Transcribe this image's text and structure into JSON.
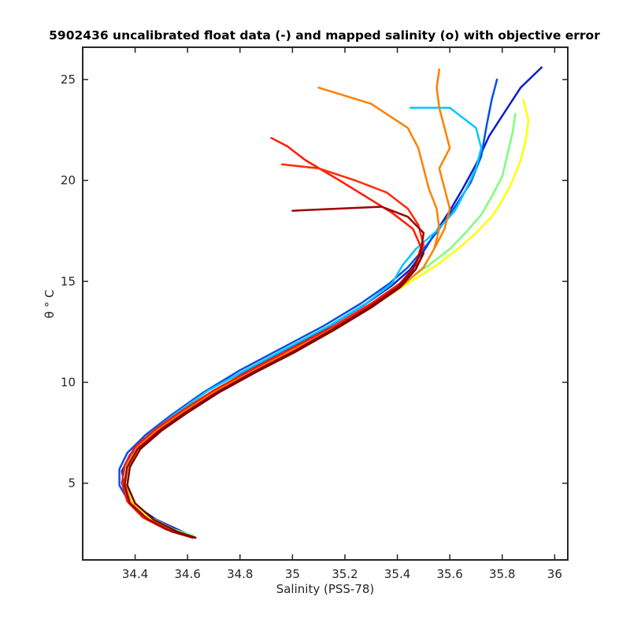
{
  "chart_data": {
    "type": "line",
    "title": "5902436 uncalibrated float data (-) and mapped salinity (o) with objective error",
    "xlabel": "Salinity (PSS-78)",
    "ylabel": "θ ° C",
    "xlim": [
      34.2,
      36.05
    ],
    "ylim": [
      1.2,
      26.6
    ],
    "x_ticks": [
      34.4,
      34.6,
      34.8,
      35,
      35.2,
      35.4,
      35.6,
      35.8,
      36
    ],
    "x_tick_labels": [
      "34.4",
      "34.6",
      "34.8",
      "35",
      "35.2",
      "35.4",
      "35.6",
      "35.8",
      "36"
    ],
    "y_ticks": [
      5,
      10,
      15,
      20,
      25
    ],
    "y_tick_labels": [
      "5",
      "10",
      "15",
      "20",
      "25"
    ],
    "grid": false,
    "colormap": [
      "#00008f",
      "#0000ff",
      "#0080ff",
      "#00ffff",
      "#80ff80",
      "#ffff00",
      "#ff8000",
      "#ff0000",
      "#800000"
    ],
    "series": [
      {
        "color": "#0a1fc8",
        "points": [
          [
            34.63,
            2.3
          ],
          [
            34.58,
            2.6
          ],
          [
            34.48,
            3.2
          ],
          [
            34.4,
            3.9
          ],
          [
            34.36,
            4.8
          ],
          [
            34.35,
            5.6
          ],
          [
            34.38,
            6.4
          ],
          [
            34.45,
            7.3
          ],
          [
            34.55,
            8.3
          ],
          [
            34.68,
            9.4
          ],
          [
            34.82,
            10.5
          ],
          [
            34.98,
            11.6
          ],
          [
            35.13,
            12.7
          ],
          [
            35.27,
            13.8
          ],
          [
            35.38,
            14.8
          ],
          [
            35.45,
            15.6
          ],
          [
            35.5,
            16.5
          ],
          [
            35.55,
            17.5
          ],
          [
            35.6,
            18.5
          ],
          [
            35.65,
            19.6
          ],
          [
            35.7,
            20.8
          ],
          [
            35.75,
            22.2
          ],
          [
            35.82,
            23.6
          ],
          [
            35.87,
            24.6
          ],
          [
            35.95,
            25.6
          ]
        ]
      },
      {
        "color": "#0050f0",
        "points": [
          [
            34.62,
            2.3
          ],
          [
            34.56,
            2.6
          ],
          [
            34.46,
            3.2
          ],
          [
            34.38,
            4.0
          ],
          [
            34.34,
            4.9
          ],
          [
            34.34,
            5.7
          ],
          [
            34.37,
            6.5
          ],
          [
            34.44,
            7.4
          ],
          [
            34.54,
            8.4
          ],
          [
            34.66,
            9.5
          ],
          [
            34.8,
            10.6
          ],
          [
            34.96,
            11.7
          ],
          [
            35.12,
            12.8
          ],
          [
            35.26,
            13.9
          ],
          [
            35.37,
            14.9
          ],
          [
            35.44,
            15.7
          ],
          [
            35.5,
            16.6
          ],
          [
            35.56,
            17.6
          ],
          [
            35.62,
            18.7
          ],
          [
            35.68,
            19.9
          ],
          [
            35.72,
            21.2
          ],
          [
            35.74,
            22.7
          ],
          [
            35.76,
            24.0
          ],
          [
            35.78,
            25.0
          ]
        ]
      },
      {
        "color": "#00c8ff",
        "points": [
          [
            34.62,
            2.4
          ],
          [
            34.55,
            2.7
          ],
          [
            34.45,
            3.3
          ],
          [
            34.38,
            4.1
          ],
          [
            34.35,
            5.0
          ],
          [
            34.36,
            5.8
          ],
          [
            34.39,
            6.6
          ],
          [
            34.46,
            7.5
          ],
          [
            34.56,
            8.5
          ],
          [
            34.68,
            9.6
          ],
          [
            34.82,
            10.6
          ],
          [
            34.98,
            11.7
          ],
          [
            35.14,
            12.8
          ],
          [
            35.28,
            13.9
          ],
          [
            35.38,
            14.9
          ],
          [
            35.42,
            15.8
          ],
          [
            35.47,
            16.6
          ],
          [
            35.55,
            17.5
          ],
          [
            35.62,
            18.5
          ],
          [
            35.66,
            19.5
          ],
          [
            35.7,
            20.6
          ],
          [
            35.72,
            21.6
          ],
          [
            35.7,
            22.6
          ],
          [
            35.6,
            23.6
          ],
          [
            35.45,
            23.6
          ]
        ]
      },
      {
        "color": "#7dff7a",
        "points": [
          [
            34.62,
            2.4
          ],
          [
            34.55,
            2.7
          ],
          [
            34.46,
            3.3
          ],
          [
            34.39,
            4.1
          ],
          [
            34.36,
            5.0
          ],
          [
            34.37,
            5.9
          ],
          [
            34.41,
            6.7
          ],
          [
            34.48,
            7.6
          ],
          [
            34.58,
            8.6
          ],
          [
            34.7,
            9.6
          ],
          [
            34.84,
            10.6
          ],
          [
            35.0,
            11.7
          ],
          [
            35.16,
            12.8
          ],
          [
            35.3,
            13.9
          ],
          [
            35.42,
            14.9
          ],
          [
            35.52,
            15.8
          ],
          [
            35.6,
            16.6
          ],
          [
            35.66,
            17.4
          ],
          [
            35.72,
            18.3
          ],
          [
            35.76,
            19.2
          ],
          [
            35.8,
            20.2
          ],
          [
            35.82,
            21.3
          ],
          [
            35.84,
            22.4
          ],
          [
            35.85,
            23.3
          ]
        ]
      },
      {
        "color": "#ffff00",
        "points": [
          [
            34.61,
            2.4
          ],
          [
            34.54,
            2.7
          ],
          [
            34.45,
            3.3
          ],
          [
            34.39,
            4.1
          ],
          [
            34.37,
            5.0
          ],
          [
            34.38,
            5.9
          ],
          [
            34.42,
            6.8
          ],
          [
            34.5,
            7.7
          ],
          [
            34.6,
            8.6
          ],
          [
            34.72,
            9.6
          ],
          [
            34.86,
            10.6
          ],
          [
            35.02,
            11.7
          ],
          [
            35.18,
            12.8
          ],
          [
            35.32,
            13.9
          ],
          [
            35.44,
            14.9
          ],
          [
            35.55,
            15.8
          ],
          [
            35.63,
            16.6
          ],
          [
            35.7,
            17.4
          ],
          [
            35.76,
            18.2
          ],
          [
            35.8,
            19.0
          ],
          [
            35.84,
            20.0
          ],
          [
            35.87,
            21.0
          ],
          [
            35.89,
            22.0
          ],
          [
            35.9,
            23.0
          ],
          [
            35.88,
            24.0
          ]
        ]
      },
      {
        "color": "#ff8000",
        "points": [
          [
            34.6,
            2.4
          ],
          [
            34.53,
            2.7
          ],
          [
            34.44,
            3.3
          ],
          [
            34.38,
            4.1
          ],
          [
            34.36,
            5.0
          ],
          [
            34.37,
            5.9
          ],
          [
            34.41,
            6.8
          ],
          [
            34.49,
            7.7
          ],
          [
            34.59,
            8.6
          ],
          [
            34.71,
            9.6
          ],
          [
            34.85,
            10.6
          ],
          [
            35.0,
            11.6
          ],
          [
            35.16,
            12.7
          ],
          [
            35.3,
            13.8
          ],
          [
            35.42,
            14.8
          ],
          [
            35.5,
            15.7
          ],
          [
            35.54,
            16.6
          ],
          [
            35.56,
            17.6
          ],
          [
            35.55,
            18.6
          ],
          [
            35.52,
            19.6
          ],
          [
            35.5,
            20.6
          ],
          [
            35.48,
            21.6
          ],
          [
            35.44,
            22.6
          ],
          [
            35.3,
            23.8
          ],
          [
            35.1,
            24.6
          ]
        ]
      },
      {
        "color": "#ff8000",
        "points": [
          [
            35.54,
            16.6
          ],
          [
            35.58,
            17.6
          ],
          [
            35.6,
            18.6
          ],
          [
            35.58,
            19.6
          ],
          [
            35.56,
            20.6
          ],
          [
            35.6,
            21.6
          ],
          [
            35.58,
            22.6
          ],
          [
            35.56,
            23.6
          ],
          [
            35.55,
            24.6
          ],
          [
            35.56,
            25.5
          ]
        ]
      },
      {
        "color": "#ff1a00",
        "points": [
          [
            34.6,
            2.4
          ],
          [
            34.52,
            2.7
          ],
          [
            34.43,
            3.3
          ],
          [
            34.37,
            4.1
          ],
          [
            34.35,
            5.0
          ],
          [
            34.36,
            5.9
          ],
          [
            34.4,
            6.8
          ],
          [
            34.48,
            7.7
          ],
          [
            34.58,
            8.6
          ],
          [
            34.7,
            9.6
          ],
          [
            34.84,
            10.6
          ],
          [
            35.0,
            11.7
          ],
          [
            35.16,
            12.8
          ],
          [
            35.3,
            13.9
          ],
          [
            35.41,
            14.9
          ],
          [
            35.47,
            15.8
          ],
          [
            35.49,
            16.7
          ],
          [
            35.46,
            17.6
          ],
          [
            35.38,
            18.4
          ],
          [
            35.28,
            19.2
          ],
          [
            35.18,
            20.0
          ],
          [
            35.05,
            21.0
          ],
          [
            34.98,
            21.7
          ],
          [
            34.92,
            22.1
          ]
        ]
      },
      {
        "color": "#ff2a00",
        "points": [
          [
            35.47,
            15.8
          ],
          [
            35.5,
            16.8
          ],
          [
            35.48,
            17.8
          ],
          [
            35.44,
            18.6
          ],
          [
            35.36,
            19.4
          ],
          [
            35.24,
            20.0
          ],
          [
            35.1,
            20.6
          ],
          [
            34.96,
            20.8
          ]
        ]
      },
      {
        "color": "#a00000",
        "points": [
          [
            34.62,
            2.3
          ],
          [
            34.54,
            2.6
          ],
          [
            34.45,
            3.2
          ],
          [
            34.38,
            4.0
          ],
          [
            34.36,
            4.9
          ],
          [
            34.37,
            5.8
          ],
          [
            34.41,
            6.7
          ],
          [
            34.49,
            7.6
          ],
          [
            34.59,
            8.5
          ],
          [
            34.71,
            9.5
          ],
          [
            34.85,
            10.5
          ],
          [
            35.0,
            11.5
          ],
          [
            35.15,
            12.6
          ],
          [
            35.29,
            13.7
          ],
          [
            35.4,
            14.7
          ],
          [
            35.46,
            15.6
          ],
          [
            35.49,
            16.5
          ],
          [
            35.5,
            17.4
          ],
          [
            35.44,
            18.2
          ],
          [
            35.34,
            18.7
          ],
          [
            35.0,
            18.5
          ]
        ]
      },
      {
        "color": "#7a0000",
        "points": [
          [
            34.63,
            2.3
          ],
          [
            34.56,
            2.6
          ],
          [
            34.47,
            3.2
          ],
          [
            34.4,
            4.0
          ],
          [
            34.37,
            4.9
          ],
          [
            34.38,
            5.8
          ],
          [
            34.42,
            6.7
          ],
          [
            34.5,
            7.6
          ],
          [
            34.6,
            8.5
          ],
          [
            34.72,
            9.5
          ],
          [
            34.86,
            10.5
          ],
          [
            35.01,
            11.5
          ],
          [
            35.16,
            12.6
          ],
          [
            35.3,
            13.7
          ],
          [
            35.41,
            14.7
          ],
          [
            35.47,
            15.6
          ],
          [
            35.5,
            16.4
          ]
        ]
      }
    ]
  }
}
